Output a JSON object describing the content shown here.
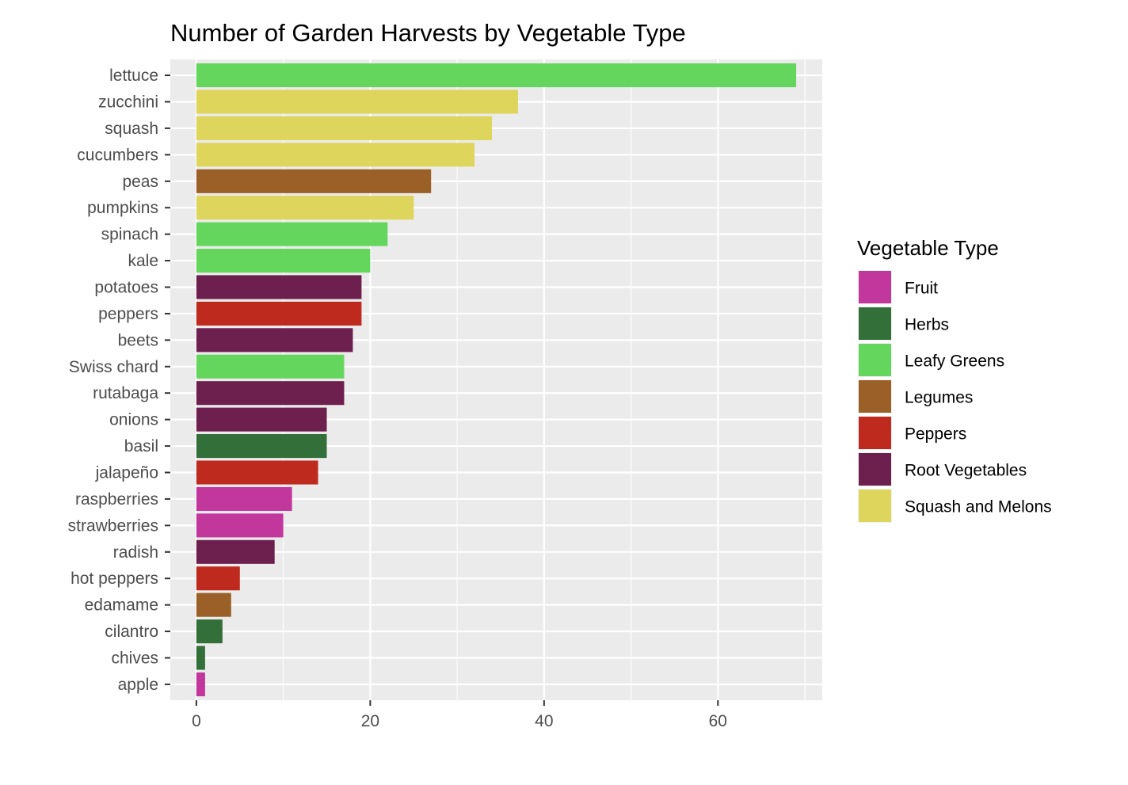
{
  "chart_data": {
    "type": "bar",
    "orientation": "horizontal",
    "title": "Number of Garden Harvests by Vegetable Type",
    "xlabel": "",
    "ylabel": "",
    "xlim": [
      -3,
      72
    ],
    "x_ticks": [
      0,
      20,
      40,
      60
    ],
    "x_minor_ticks": [
      10,
      30,
      50,
      70
    ],
    "grid": true,
    "legend_position": "right",
    "legend": {
      "title": "Vegetable Type",
      "entries": [
        {
          "name": "Fruit",
          "color": "#c1379c"
        },
        {
          "name": "Herbs",
          "color": "#336f39"
        },
        {
          "name": "Leafy Greens",
          "color": "#65d65d"
        },
        {
          "name": "Legumes",
          "color": "#9b6027"
        },
        {
          "name": "Peppers",
          "color": "#bf2a1e"
        },
        {
          "name": "Root Vegetables",
          "color": "#6d1f4d"
        },
        {
          "name": "Squash and Melons",
          "color": "#ddd55c"
        }
      ]
    },
    "bars": [
      {
        "category": "lettuce",
        "value": 69,
        "type": "Leafy Greens"
      },
      {
        "category": "zucchini",
        "value": 37,
        "type": "Squash and Melons"
      },
      {
        "category": "squash",
        "value": 34,
        "type": "Squash and Melons"
      },
      {
        "category": "cucumbers",
        "value": 32,
        "type": "Squash and Melons"
      },
      {
        "category": "peas",
        "value": 27,
        "type": "Legumes"
      },
      {
        "category": "pumpkins",
        "value": 25,
        "type": "Squash and Melons"
      },
      {
        "category": "spinach",
        "value": 22,
        "type": "Leafy Greens"
      },
      {
        "category": "kale",
        "value": 20,
        "type": "Leafy Greens"
      },
      {
        "category": "potatoes",
        "value": 19,
        "type": "Root Vegetables"
      },
      {
        "category": "peppers",
        "value": 19,
        "type": "Peppers"
      },
      {
        "category": "beets",
        "value": 18,
        "type": "Root Vegetables"
      },
      {
        "category": "Swiss chard",
        "value": 17,
        "type": "Leafy Greens"
      },
      {
        "category": "rutabaga",
        "value": 17,
        "type": "Root Vegetables"
      },
      {
        "category": "onions",
        "value": 15,
        "type": "Root Vegetables"
      },
      {
        "category": "basil",
        "value": 15,
        "type": "Herbs"
      },
      {
        "category": "jalapeño",
        "value": 14,
        "type": "Peppers"
      },
      {
        "category": "raspberries",
        "value": 11,
        "type": "Fruit"
      },
      {
        "category": "strawberries",
        "value": 10,
        "type": "Fruit"
      },
      {
        "category": "radish",
        "value": 9,
        "type": "Root Vegetables"
      },
      {
        "category": "hot peppers",
        "value": 5,
        "type": "Peppers"
      },
      {
        "category": "edamame",
        "value": 4,
        "type": "Legumes"
      },
      {
        "category": "cilantro",
        "value": 3,
        "type": "Herbs"
      },
      {
        "category": "chives",
        "value": 1,
        "type": "Herbs"
      },
      {
        "category": "apple",
        "value": 1,
        "type": "Fruit"
      }
    ]
  }
}
